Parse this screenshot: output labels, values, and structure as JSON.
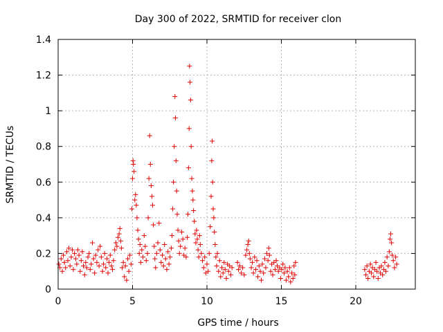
{
  "chart_data": {
    "type": "scatter",
    "title": "Day 300 of 2022, SRMTID for receiver clon",
    "xlabel": "GPS time / hours",
    "ylabel": "SRMTID / TECUs",
    "xlim": [
      0,
      24
    ],
    "ylim": [
      0,
      1.4
    ],
    "xticks": [
      0,
      5,
      10,
      15,
      20
    ],
    "yticks": [
      0,
      0.2,
      0.4,
      0.6,
      0.8,
      1,
      1.2,
      1.4
    ],
    "xtick_labels": [
      "0",
      "5",
      "10",
      "15",
      "20"
    ],
    "ytick_labels": [
      "0",
      "0.2",
      "0.4",
      "0.6",
      "0.8",
      "1",
      "1.2",
      "1.4"
    ],
    "grid": true,
    "marker": "+",
    "marker_color": "#e00000",
    "series": [
      {
        "name": "SRMTID",
        "points": [
          [
            0.05,
            0.14
          ],
          [
            0.12,
            0.12
          ],
          [
            0.2,
            0.17
          ],
          [
            0.28,
            0.1
          ],
          [
            0.35,
            0.19
          ],
          [
            0.42,
            0.15
          ],
          [
            0.5,
            0.12
          ],
          [
            0.58,
            0.21
          ],
          [
            0.65,
            0.16
          ],
          [
            0.72,
            0.23
          ],
          [
            0.8,
            0.13
          ],
          [
            0.88,
            0.18
          ],
          [
            0.95,
            0.22
          ],
          [
            1.02,
            0.11
          ],
          [
            1.1,
            0.2
          ],
          [
            1.18,
            0.17
          ],
          [
            1.25,
            0.14
          ],
          [
            1.32,
            0.22
          ],
          [
            1.4,
            0.19
          ],
          [
            1.48,
            0.1
          ],
          [
            1.55,
            0.16
          ],
          [
            1.62,
            0.21
          ],
          [
            1.7,
            0.13
          ],
          [
            1.78,
            0.08
          ],
          [
            1.85,
            0.15
          ],
          [
            1.92,
            0.12
          ],
          [
            2.0,
            0.18
          ],
          [
            2.08,
            0.2
          ],
          [
            2.15,
            0.11
          ],
          [
            2.22,
            0.14
          ],
          [
            2.3,
            0.26
          ],
          [
            2.38,
            0.17
          ],
          [
            2.45,
            0.09
          ],
          [
            2.52,
            0.19
          ],
          [
            2.6,
            0.15
          ],
          [
            2.68,
            0.22
          ],
          [
            2.75,
            0.13
          ],
          [
            2.82,
            0.24
          ],
          [
            2.9,
            0.18
          ],
          [
            2.98,
            0.1
          ],
          [
            3.05,
            0.14
          ],
          [
            3.12,
            0.2
          ],
          [
            3.2,
            0.12
          ],
          [
            3.28,
            0.17
          ],
          [
            3.35,
            0.09
          ],
          [
            3.42,
            0.15
          ],
          [
            3.5,
            0.19
          ],
          [
            3.58,
            0.13
          ],
          [
            3.65,
            0.11
          ],
          [
            3.72,
            0.16
          ],
          [
            3.8,
            0.22
          ],
          [
            3.88,
            0.26
          ],
          [
            3.95,
            0.24
          ],
          [
            4.02,
            0.29
          ],
          [
            4.1,
            0.31
          ],
          [
            4.15,
            0.34
          ],
          [
            4.2,
            0.27
          ],
          [
            4.25,
            0.23
          ],
          [
            4.3,
            0.12
          ],
          [
            4.38,
            0.15
          ],
          [
            4.45,
            0.07
          ],
          [
            4.52,
            0.13
          ],
          [
            4.6,
            0.05
          ],
          [
            4.68,
            0.17
          ],
          [
            4.75,
            0.1
          ],
          [
            4.82,
            0.19
          ],
          [
            4.9,
            0.14
          ],
          [
            4.95,
            0.45
          ],
          [
            5.0,
            0.62
          ],
          [
            5.03,
            0.72
          ],
          [
            5.06,
            0.7
          ],
          [
            5.1,
            0.66
          ],
          [
            5.15,
            0.5
          ],
          [
            5.2,
            0.53
          ],
          [
            5.25,
            0.47
          ],
          [
            5.3,
            0.4
          ],
          [
            5.35,
            0.33
          ],
          [
            5.4,
            0.28
          ],
          [
            5.45,
            0.2
          ],
          [
            5.5,
            0.25
          ],
          [
            5.55,
            0.15
          ],
          [
            5.62,
            0.22
          ],
          [
            5.7,
            0.18
          ],
          [
            5.78,
            0.3
          ],
          [
            5.85,
            0.24
          ],
          [
            5.92,
            0.16
          ],
          [
            6.0,
            0.2
          ],
          [
            6.05,
            0.4
          ],
          [
            6.1,
            0.62
          ],
          [
            6.15,
            0.86
          ],
          [
            6.2,
            0.7
          ],
          [
            6.25,
            0.58
          ],
          [
            6.3,
            0.52
          ],
          [
            6.35,
            0.47
          ],
          [
            6.4,
            0.36
          ],
          [
            6.45,
            0.24
          ],
          [
            6.5,
            0.17
          ],
          [
            6.55,
            0.12
          ],
          [
            6.62,
            0.2
          ],
          [
            6.7,
            0.26
          ],
          [
            6.78,
            0.37
          ],
          [
            6.85,
            0.22
          ],
          [
            6.92,
            0.15
          ],
          [
            7.0,
            0.19
          ],
          [
            7.08,
            0.13
          ],
          [
            7.15,
            0.25
          ],
          [
            7.22,
            0.17
          ],
          [
            7.3,
            0.11
          ],
          [
            7.38,
            0.21
          ],
          [
            7.45,
            0.14
          ],
          [
            7.52,
            0.18
          ],
          [
            7.6,
            0.23
          ],
          [
            7.65,
            0.3
          ],
          [
            7.7,
            0.45
          ],
          [
            7.75,
            0.6
          ],
          [
            7.8,
            0.8
          ],
          [
            7.85,
            1.08
          ],
          [
            7.88,
            0.96
          ],
          [
            7.92,
            0.72
          ],
          [
            7.96,
            0.55
          ],
          [
            8.0,
            0.42
          ],
          [
            8.05,
            0.33
          ],
          [
            8.1,
            0.27
          ],
          [
            8.15,
            0.2
          ],
          [
            8.22,
            0.24
          ],
          [
            8.3,
            0.32
          ],
          [
            8.38,
            0.28
          ],
          [
            8.45,
            0.19
          ],
          [
            8.52,
            0.23
          ],
          [
            8.6,
            0.18
          ],
          [
            8.68,
            0.29
          ],
          [
            8.72,
            0.42
          ],
          [
            8.76,
            0.68
          ],
          [
            8.8,
            0.9
          ],
          [
            8.83,
            1.25
          ],
          [
            8.86,
            1.16
          ],
          [
            8.9,
            1.06
          ],
          [
            8.94,
            0.8
          ],
          [
            8.98,
            0.62
          ],
          [
            9.02,
            0.55
          ],
          [
            9.06,
            0.5
          ],
          [
            9.1,
            0.44
          ],
          [
            9.15,
            0.38
          ],
          [
            9.2,
            0.31
          ],
          [
            9.25,
            0.26
          ],
          [
            9.3,
            0.33
          ],
          [
            9.35,
            0.28
          ],
          [
            9.4,
            0.22
          ],
          [
            9.45,
            0.18
          ],
          [
            9.5,
            0.3
          ],
          [
            9.55,
            0.25
          ],
          [
            9.62,
            0.2
          ],
          [
            9.7,
            0.16
          ],
          [
            9.78,
            0.12
          ],
          [
            9.85,
            0.18
          ],
          [
            9.92,
            0.09
          ],
          [
            10.0,
            0.14
          ],
          [
            10.08,
            0.1
          ],
          [
            10.15,
            0.2
          ],
          [
            10.22,
            0.35
          ],
          [
            10.28,
            0.52
          ],
          [
            10.32,
            0.72
          ],
          [
            10.35,
            0.83
          ],
          [
            10.38,
            0.6
          ],
          [
            10.42,
            0.45
          ],
          [
            10.46,
            0.4
          ],
          [
            10.5,
            0.32
          ],
          [
            10.55,
            0.25
          ],
          [
            10.6,
            0.18
          ],
          [
            10.65,
            0.13
          ],
          [
            10.7,
            0.2
          ],
          [
            10.78,
            0.1
          ],
          [
            10.85,
            0.16
          ],
          [
            10.92,
            0.07
          ],
          [
            11.0,
            0.12
          ],
          [
            11.08,
            0.09
          ],
          [
            11.15,
            0.15
          ],
          [
            11.22,
            0.11
          ],
          [
            11.3,
            0.06
          ],
          [
            11.38,
            0.14
          ],
          [
            11.45,
            0.1
          ],
          [
            11.52,
            0.13
          ],
          [
            11.6,
            0.08
          ],
          [
            11.68,
            0.12
          ],
          [
            12.05,
            0.15
          ],
          [
            12.12,
            0.11
          ],
          [
            12.2,
            0.13
          ],
          [
            12.3,
            0.09
          ],
          [
            12.4,
            0.12
          ],
          [
            12.5,
            0.08
          ],
          [
            12.6,
            0.19
          ],
          [
            12.68,
            0.22
          ],
          [
            12.75,
            0.25
          ],
          [
            12.8,
            0.27
          ],
          [
            12.85,
            0.2
          ],
          [
            12.9,
            0.17
          ],
          [
            12.98,
            0.12
          ],
          [
            13.05,
            0.15
          ],
          [
            13.12,
            0.09
          ],
          [
            13.2,
            0.18
          ],
          [
            13.28,
            0.11
          ],
          [
            13.35,
            0.16
          ],
          [
            13.42,
            0.07
          ],
          [
            13.5,
            0.13
          ],
          [
            13.58,
            0.1
          ],
          [
            13.65,
            0.05
          ],
          [
            13.72,
            0.14
          ],
          [
            13.8,
            0.09
          ],
          [
            13.88,
            0.17
          ],
          [
            13.95,
            0.12
          ],
          [
            14.02,
            0.2
          ],
          [
            14.1,
            0.16
          ],
          [
            14.15,
            0.23
          ],
          [
            14.2,
            0.19
          ],
          [
            14.28,
            0.1
          ],
          [
            14.35,
            0.14
          ],
          [
            14.42,
            0.08
          ],
          [
            14.5,
            0.15
          ],
          [
            14.58,
            0.11
          ],
          [
            14.65,
            0.16
          ],
          [
            14.72,
            0.13
          ],
          [
            14.8,
            0.1
          ],
          [
            14.88,
            0.12
          ],
          [
            14.95,
            0.06
          ],
          [
            15.02,
            0.11
          ],
          [
            15.1,
            0.14
          ],
          [
            15.18,
            0.09
          ],
          [
            15.25,
            0.12
          ],
          [
            15.32,
            0.05
          ],
          [
            15.4,
            0.1
          ],
          [
            15.48,
            0.07
          ],
          [
            15.55,
            0.12
          ],
          [
            15.62,
            0.04
          ],
          [
            15.7,
            0.09
          ],
          [
            15.78,
            0.06
          ],
          [
            15.85,
            0.13
          ],
          [
            15.9,
            0.08
          ],
          [
            15.95,
            0.15
          ],
          [
            20.6,
            0.11
          ],
          [
            20.68,
            0.08
          ],
          [
            20.75,
            0.13
          ],
          [
            20.82,
            0.06
          ],
          [
            20.9,
            0.1
          ],
          [
            20.98,
            0.14
          ],
          [
            21.05,
            0.09
          ],
          [
            21.12,
            0.12
          ],
          [
            21.2,
            0.07
          ],
          [
            21.28,
            0.11
          ],
          [
            21.35,
            0.15
          ],
          [
            21.42,
            0.1
          ],
          [
            21.5,
            0.06
          ],
          [
            21.58,
            0.12
          ],
          [
            21.65,
            0.09
          ],
          [
            21.72,
            0.13
          ],
          [
            21.8,
            0.08
          ],
          [
            21.88,
            0.11
          ],
          [
            21.95,
            0.15
          ],
          [
            22.02,
            0.1
          ],
          [
            22.1,
            0.18
          ],
          [
            22.18,
            0.13
          ],
          [
            22.25,
            0.21
          ],
          [
            22.3,
            0.28
          ],
          [
            22.35,
            0.31
          ],
          [
            22.4,
            0.26
          ],
          [
            22.45,
            0.19
          ],
          [
            22.52,
            0.16
          ],
          [
            22.6,
            0.12
          ],
          [
            22.68,
            0.18
          ],
          [
            22.75,
            0.14
          ]
        ]
      }
    ]
  }
}
